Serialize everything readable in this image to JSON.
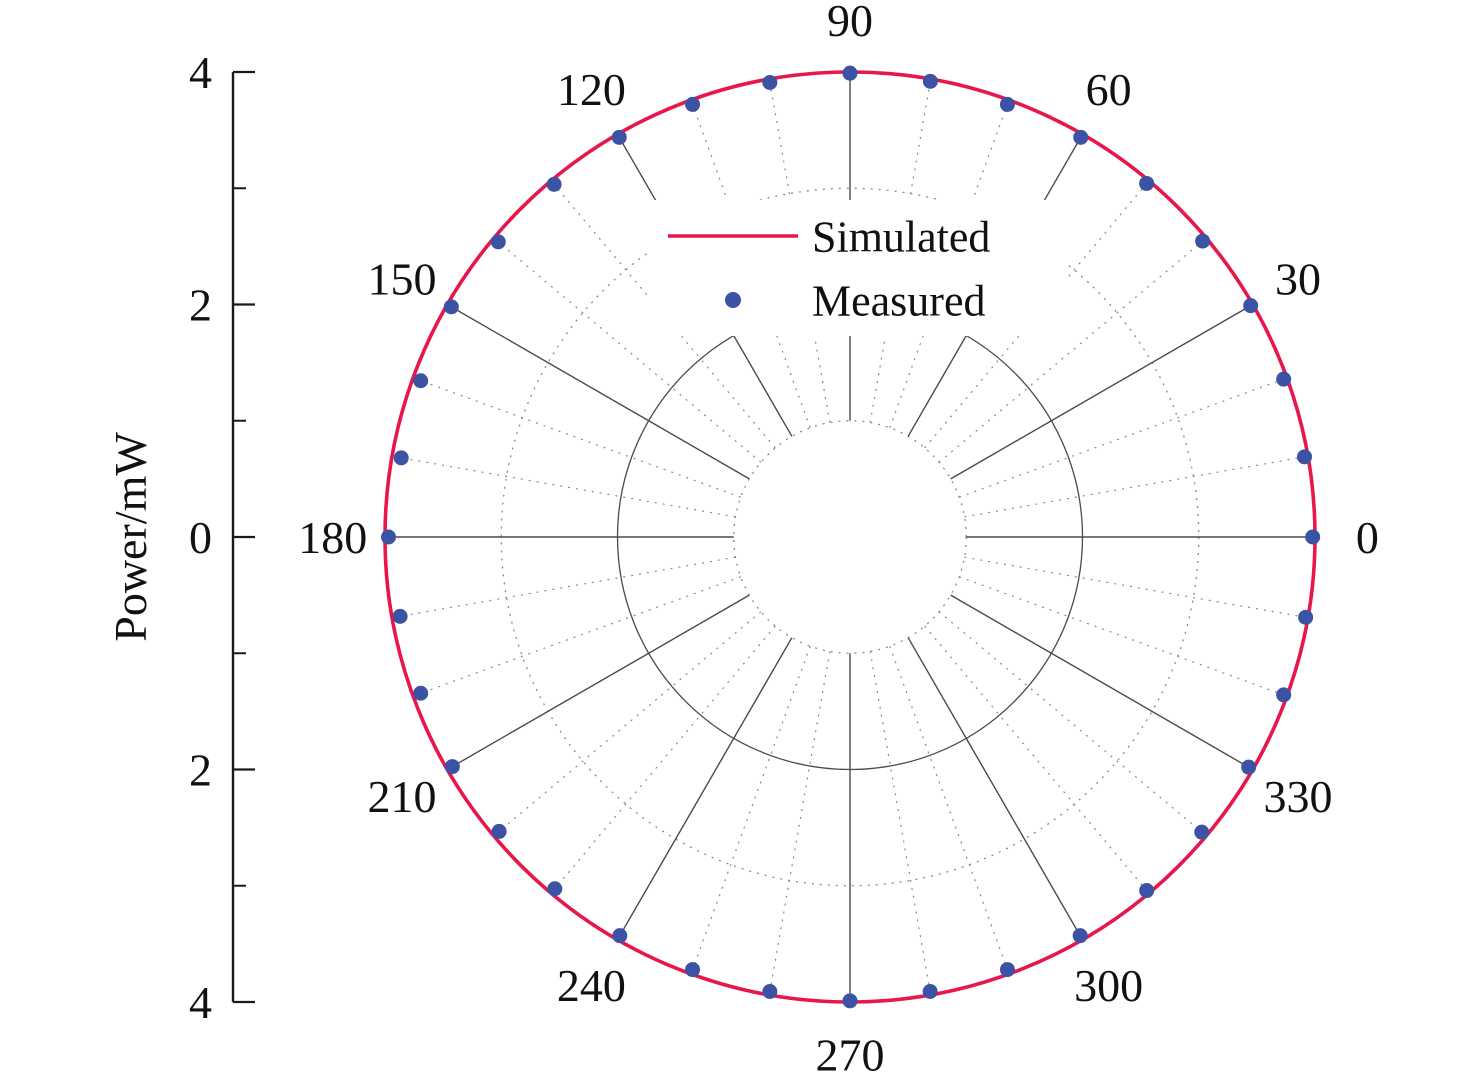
{
  "page": {
    "background": "#ffffff"
  },
  "y_axis": {
    "title": "Power/mW",
    "tick_labels": [
      "4",
      "2",
      "0",
      "2",
      "4"
    ],
    "tick_values": [
      4,
      2,
      0,
      -2,
      -4
    ],
    "minor_tick_values": [
      3,
      1,
      -1,
      -3
    ]
  },
  "legend": {
    "position": "inside top-center",
    "items": [
      {
        "label": "Simulated",
        "marker": "line",
        "color": "#e8174b"
      },
      {
        "label": "Measured",
        "marker": "dot",
        "color": "#3c52a4"
      }
    ]
  },
  "chart_data": {
    "type": "line",
    "subtype": "polar",
    "angular_unit": "degrees",
    "radial_axis_label": "Power/mW",
    "rlim": [
      0,
      4
    ],
    "grid": true,
    "legend_position": "inside top-center",
    "angle_ticks_deg": [
      0,
      30,
      60,
      90,
      120,
      150,
      180,
      210,
      240,
      270,
      300,
      330
    ],
    "angle_tick_labels": [
      "0",
      "30",
      "60",
      "90",
      "120",
      "150",
      "180",
      "210",
      "240",
      "270",
      "300",
      "330"
    ],
    "major_angle_step_deg": 30,
    "minor_angle_step_deg": 10,
    "spoke_inner_r": 1,
    "grid_circles": [
      {
        "r": 1,
        "style": "dotted"
      },
      {
        "r": 2,
        "style": "solid"
      },
      {
        "r": 3,
        "style": "dotted"
      }
    ],
    "series": [
      {
        "name": "Simulated",
        "type": "line",
        "color": "#e8174b",
        "description": "constant-radius circle (omnidirectional pattern)",
        "r_constant_mW": 4.0
      },
      {
        "name": "Measured",
        "type": "scatter",
        "color": "#3c52a4",
        "angles_deg": [
          0,
          10,
          20,
          30,
          40,
          50,
          60,
          70,
          80,
          90,
          100,
          110,
          120,
          130,
          140,
          150,
          160,
          170,
          180,
          190,
          200,
          210,
          220,
          230,
          240,
          250,
          260,
          270,
          280,
          290,
          300,
          310,
          320,
          330,
          340,
          350
        ],
        "r_mW": [
          3.98,
          3.97,
          3.97,
          3.98,
          3.96,
          3.97,
          3.97,
          3.96,
          3.98,
          3.99,
          3.97,
          3.96,
          3.97,
          3.96,
          3.95,
          3.96,
          3.93,
          3.92,
          3.97,
          3.93,
          3.93,
          3.95,
          3.94,
          3.95,
          3.96,
          3.96,
          3.97,
          3.99,
          3.97,
          3.96,
          3.96,
          3.97,
          3.95,
          3.96,
          3.97,
          3.98
        ]
      }
    ]
  }
}
